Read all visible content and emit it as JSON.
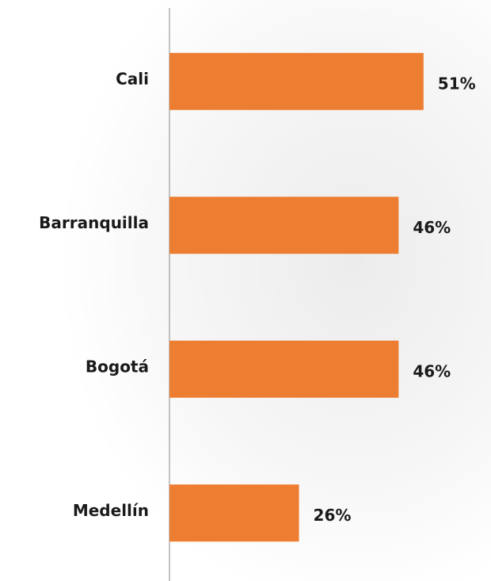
{
  "chart_data": {
    "type": "bar",
    "orientation": "horizontal",
    "categories": [
      "Cali",
      "Barranquilla",
      "Bogotá",
      "Medellín"
    ],
    "values": [
      51,
      46,
      46,
      26
    ],
    "value_labels": [
      "51%",
      "46%",
      "46%",
      "26%"
    ],
    "color": "#ed7d31"
  }
}
